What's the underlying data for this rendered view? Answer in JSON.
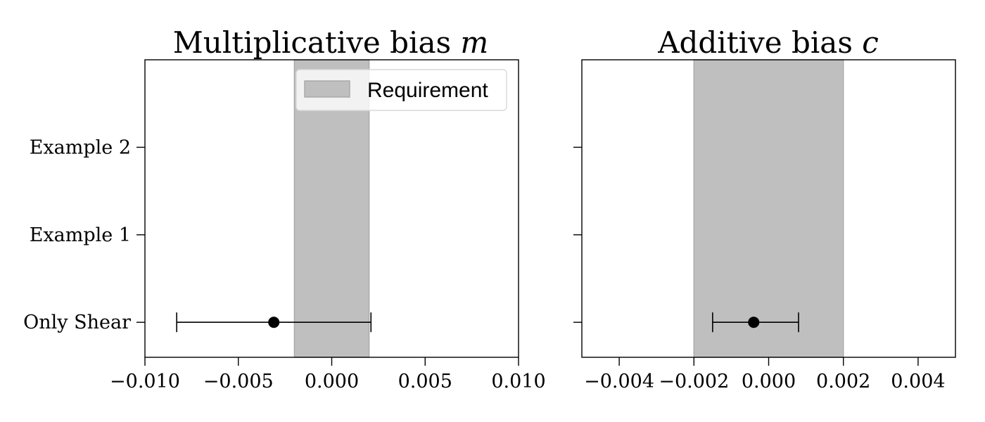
{
  "chart_data": [
    {
      "type": "scatter",
      "title": "Multiplicative bias",
      "title_symbol": "m",
      "xlim": [
        -0.01,
        0.01
      ],
      "xticks": [
        -0.01,
        -0.005,
        0.0,
        0.005,
        0.01
      ],
      "xtick_labels": [
        "−0.010",
        "−0.005",
        "0.000",
        "0.005",
        "0.010"
      ],
      "categories": [
        "Only Shear",
        "Example 1",
        "Example 2"
      ],
      "ylim": [
        -0.4,
        3.0
      ],
      "requirement_band": [
        -0.002,
        0.002
      ],
      "legend": {
        "label": "Requirement",
        "placement": "upper-right"
      },
      "points": [
        {
          "category": "Only Shear",
          "x": -0.0031,
          "xerr_low": -0.0083,
          "xerr_high": 0.0021
        }
      ],
      "grid": false
    },
    {
      "type": "scatter",
      "title": "Additive bias",
      "title_symbol": "c",
      "xlim": [
        -0.005,
        0.005
      ],
      "xticks": [
        -0.004,
        -0.002,
        0.0,
        0.002,
        0.004
      ],
      "xtick_labels": [
        "−0.004",
        "−0.002",
        "0.000",
        "0.002",
        "0.004"
      ],
      "categories": [
        "Only Shear",
        "Example 1",
        "Example 2"
      ],
      "ylim": [
        -0.4,
        3.0
      ],
      "requirement_band": [
        -0.002,
        0.002
      ],
      "points": [
        {
          "category": "Only Shear",
          "x": -0.0004,
          "xerr_low": -0.0015,
          "xerr_high": 0.0008
        }
      ],
      "grid": false
    }
  ]
}
